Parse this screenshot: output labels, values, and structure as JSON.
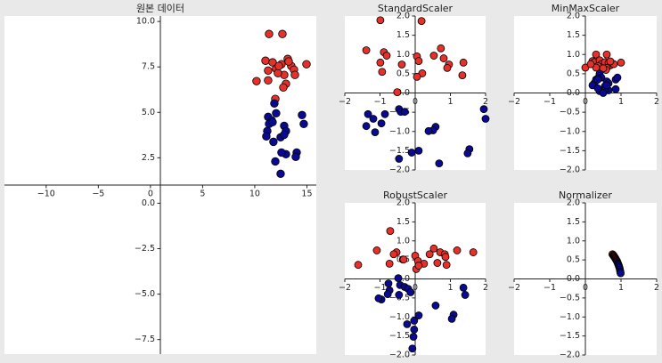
{
  "chart_data": [
    {
      "type": "scatter",
      "title": "원본 데이터",
      "spines": "center",
      "xlim": [
        -14,
        15.9
      ],
      "ylim": [
        -8.3,
        10.3
      ],
      "xticks": [
        {
          "value": -10,
          "label": "−10"
        },
        {
          "value": -5,
          "label": "−5"
        },
        0,
        5,
        10,
        15
      ],
      "yticks": [
        {
          "value": 10,
          "label": "10.0"
        },
        7.5,
        {
          "value": 5,
          "label": "5.0"
        },
        2.5,
        {
          "value": 0,
          "label": "0.0"
        },
        {
          "value": -2.5,
          "label": "−2.5"
        },
        {
          "value": -5,
          "label": "−5.0"
        },
        {
          "value": -7.5,
          "label": "−7.5"
        }
      ],
      "series": [
        {
          "color": "#e8302a",
          "x": [
            11.37,
            12.65,
            11.03,
            11.71,
            10.17,
            11.28,
            12.05,
            12.56,
            13.16,
            13.5,
            13.76,
            14.96,
            12.82,
            12.99,
            12.74,
            12.22,
            11.28,
            13.85,
            13.25,
            12.31,
            11.97
          ],
          "y": [
            9.31,
            9.31,
            7.84,
            7.75,
            6.72,
            6.76,
            7.4,
            7.65,
            7.94,
            7.55,
            7.35,
            7.65,
            7.06,
            6.57,
            6.37,
            7.16,
            7.3,
            7.06,
            7.8,
            7.55,
            5.74
          ]
        },
        {
          "color": "#0a0a90",
          "x": [
            11.88,
            12.05,
            11.28,
            11.62,
            11.37,
            11.2,
            11.71,
            12.82,
            12.99,
            12.48,
            11.11,
            12.99,
            12.56,
            11.97,
            14.02,
            13.93,
            12.48,
            14.53,
            14.7,
            11.79,
            12.82
          ],
          "y": [
            5.49,
            4.95,
            4.75,
            4.56,
            4.36,
            3.97,
            4.46,
            4.26,
            3.97,
            3.63,
            3.68,
            2.7,
            2.79,
            2.3,
            2.79,
            2.55,
            1.62,
            4.85,
            4.36,
            3.38,
            3.77
          ]
        }
      ]
    },
    {
      "type": "scatter",
      "title": "StandardScaler",
      "spines": "center",
      "xlim": [
        -2,
        2
      ],
      "ylim": [
        -2,
        2
      ],
      "xticks": [
        {
          "value": -2,
          "label": "−2"
        },
        {
          "value": -1,
          "label": "−1"
        },
        0,
        1,
        2
      ],
      "yticks": [
        {
          "value": -2,
          "label": "−2.0"
        },
        {
          "value": -1.5,
          "label": "−1.5"
        },
        {
          "value": -1,
          "label": "−1.0"
        },
        {
          "value": -0.5,
          "label": "−0.5"
        },
        {
          "value": 0,
          "label": "0.0"
        },
        0.5,
        {
          "value": 1,
          "label": "1.0"
        },
        1.5,
        {
          "value": 2,
          "label": "2.0"
        }
      ],
      "series": [
        {
          "color": "#e8302a",
          "x": [
            -0.99,
            0.18,
            -1.39,
            -0.89,
            -0.81,
            -0.38,
            0.05,
            0.1,
            0.53,
            0.73,
            0.81,
            0.96,
            0.91,
            1.37,
            1.34,
            0.2,
            0.05,
            -0.94,
            -0.99,
            -0.51
          ],
          "y": [
            1.89,
            1.87,
            1.11,
            1.06,
            0.97,
            0.74,
            0.95,
            0.83,
            0.97,
            1.16,
            0.9,
            0.74,
            0.65,
            0.79,
            0.46,
            0.51,
            0.42,
            0.55,
            0.79,
            0.02
          ]
        },
        {
          "color": "#0a0a90",
          "x": [
            -0.46,
            -0.41,
            -0.3,
            -1.34,
            -1.19,
            -1.39,
            -0.96,
            -1.14,
            -0.86,
            0.58,
            0.51,
            1.95,
            2.0,
            1.54,
            1.49,
            0.1,
            -0.1,
            -0.46,
            0.68,
            0.38
          ],
          "y": [
            -0.42,
            -0.49,
            -0.49,
            -0.55,
            -0.67,
            -0.86,
            -0.79,
            -1.02,
            -0.55,
            -0.88,
            -0.97,
            -0.42,
            -0.67,
            -1.46,
            -1.57,
            -1.5,
            -1.55,
            -1.71,
            -1.83,
            -0.99
          ]
        }
      ]
    },
    {
      "type": "scatter",
      "title": "MinMaxScaler",
      "spines": "center",
      "xlim": [
        -2,
        2
      ],
      "ylim": [
        -2,
        2
      ],
      "xticks": [
        {
          "value": -2,
          "label": "−2"
        },
        {
          "value": -1,
          "label": "−1"
        },
        0,
        1,
        2
      ],
      "yticks": [
        {
          "value": -2,
          "label": "−2.0"
        },
        {
          "value": -1.5,
          "label": "−1.5"
        },
        {
          "value": -1,
          "label": "−1.0"
        },
        {
          "value": -0.5,
          "label": "−0.5"
        },
        {
          "value": 0,
          "label": "0.0"
        },
        0.5,
        {
          "value": 1,
          "label": "1.0"
        },
        1.5,
        {
          "value": 2,
          "label": "2.0"
        }
      ],
      "series": [
        {
          "color": "#e8302a",
          "x": [
            0.3,
            0.6,
            0.0,
            0.2,
            0.25,
            0.4,
            0.45,
            0.5,
            0.55,
            0.65,
            0.7,
            0.8,
            1.0,
            0.6,
            0.58,
            0.35,
            0.3,
            0.15,
            0.7,
            0.5,
            0.4
          ],
          "y": [
            1.0,
            1.0,
            0.66,
            0.83,
            0.8,
            0.85,
            0.75,
            0.7,
            0.8,
            0.78,
            0.72,
            0.75,
            0.79,
            0.65,
            0.6,
            0.7,
            0.66,
            0.75,
            0.82,
            0.64,
            0.46
          ]
        },
        {
          "color": "#0a0a90",
          "x": [
            0.4,
            0.45,
            0.3,
            0.35,
            0.3,
            0.25,
            0.35,
            0.6,
            0.65,
            0.55,
            0.2,
            0.65,
            0.55,
            0.4,
            0.85,
            0.85,
            0.9,
            0.5,
            0.6,
            0.35
          ],
          "y": [
            0.5,
            0.4,
            0.35,
            0.38,
            0.32,
            0.25,
            0.35,
            0.3,
            0.25,
            0.18,
            0.2,
            0.07,
            0.08,
            0.05,
            0.1,
            0.35,
            0.4,
            0.0,
            0.2,
            0.12
          ]
        }
      ]
    },
    {
      "type": "scatter",
      "title": "RobustScaler",
      "spines": "center",
      "xlim": [
        -2,
        2
      ],
      "ylim": [
        -2,
        2
      ],
      "xticks": [
        {
          "value": -2,
          "label": "−2"
        },
        {
          "value": -1,
          "label": "−1"
        },
        0,
        1,
        2
      ],
      "yticks": [
        {
          "value": -2,
          "label": "−2.0"
        },
        {
          "value": -1.5,
          "label": "−1.5"
        },
        {
          "value": -1,
          "label": "−1.0"
        },
        {
          "value": -0.5,
          "label": "−0.5"
        },
        {
          "value": 0,
          "label": "0.0"
        },
        0.5,
        {
          "value": 1,
          "label": "1.0"
        },
        1.5,
        {
          "value": 2,
          "label": "2.0"
        }
      ],
      "series": [
        {
          "color": "#e8302a",
          "x": [
            -0.71,
            -1.62,
            -1.09,
            -0.53,
            -0.61,
            -0.35,
            0,
            0.08,
            0.25,
            0.53,
            0.71,
            0.84,
            0.86,
            1.19,
            1.65,
            0.89,
            0.63,
            -0.73,
            0.03,
            -0.33,
            0.1,
            0.41
          ],
          "y": [
            1.26,
            0.37,
            0.75,
            0.7,
            0.65,
            0.51,
            0.61,
            0.47,
            0.4,
            0.8,
            0.7,
            0.65,
            0.58,
            0.75,
            0.7,
            0.37,
            0.42,
            0.4,
            0.26,
            0.51,
            0.35,
            0.65
          ]
        },
        {
          "color": "#0a0a90",
          "x": [
            -0.48,
            -0.43,
            -0.73,
            -0.78,
            -0.96,
            -1.04,
            -0.3,
            -0.2,
            -0.76,
            -0.13,
            -0.46,
            0.1,
            -0.03,
            -0.23,
            0.58,
            1.37,
            1.42,
            1.09,
            1.04,
            -0.03,
            -0.08,
            -0.05
          ],
          "y": [
            0.02,
            -0.16,
            -0.3,
            -0.4,
            -0.54,
            -0.51,
            -0.21,
            -0.26,
            -0.12,
            -0.35,
            -0.42,
            -0.96,
            -1.1,
            -1.19,
            -0.7,
            -0.23,
            -0.42,
            -0.94,
            -1.05,
            -1.33,
            -1.83,
            -1.52
          ]
        }
      ]
    },
    {
      "type": "scatter",
      "title": "Normalizer",
      "spines": "center",
      "xlim": [
        -2,
        2
      ],
      "ylim": [
        -2,
        2
      ],
      "xticks": [
        {
          "value": -2,
          "label": "−2"
        },
        {
          "value": -1,
          "label": "−1"
        },
        0,
        1,
        2
      ],
      "yticks": [
        {
          "value": -2,
          "label": "−2.0"
        },
        {
          "value": -1.5,
          "label": "−1.5"
        },
        {
          "value": -1,
          "label": "−1.0"
        },
        {
          "value": -0.5,
          "label": "−0.5"
        },
        {
          "value": 0,
          "label": "0.0"
        },
        0.5,
        {
          "value": 1,
          "label": "1.0"
        },
        1.5,
        {
          "value": 2,
          "label": "2.0"
        }
      ],
      "series": [
        {
          "color": "#e8302a",
          "x": [
            0.76,
            0.78,
            0.79,
            0.8,
            0.81,
            0.82,
            0.83,
            0.84,
            0.85,
            0.86,
            0.87,
            0.88,
            0.89
          ],
          "y": [
            0.65,
            0.63,
            0.61,
            0.6,
            0.59,
            0.57,
            0.56,
            0.54,
            0.53,
            0.51,
            0.49,
            0.48,
            0.46
          ]
        },
        {
          "color": "#0a0a90",
          "x": [
            0.9,
            0.91,
            0.92,
            0.93,
            0.94,
            0.95,
            0.96,
            0.97,
            0.98,
            0.98,
            0.99
          ],
          "y": [
            0.44,
            0.41,
            0.39,
            0.37,
            0.34,
            0.31,
            0.28,
            0.24,
            0.2,
            0.18,
            0.15
          ]
        }
      ]
    }
  ]
}
